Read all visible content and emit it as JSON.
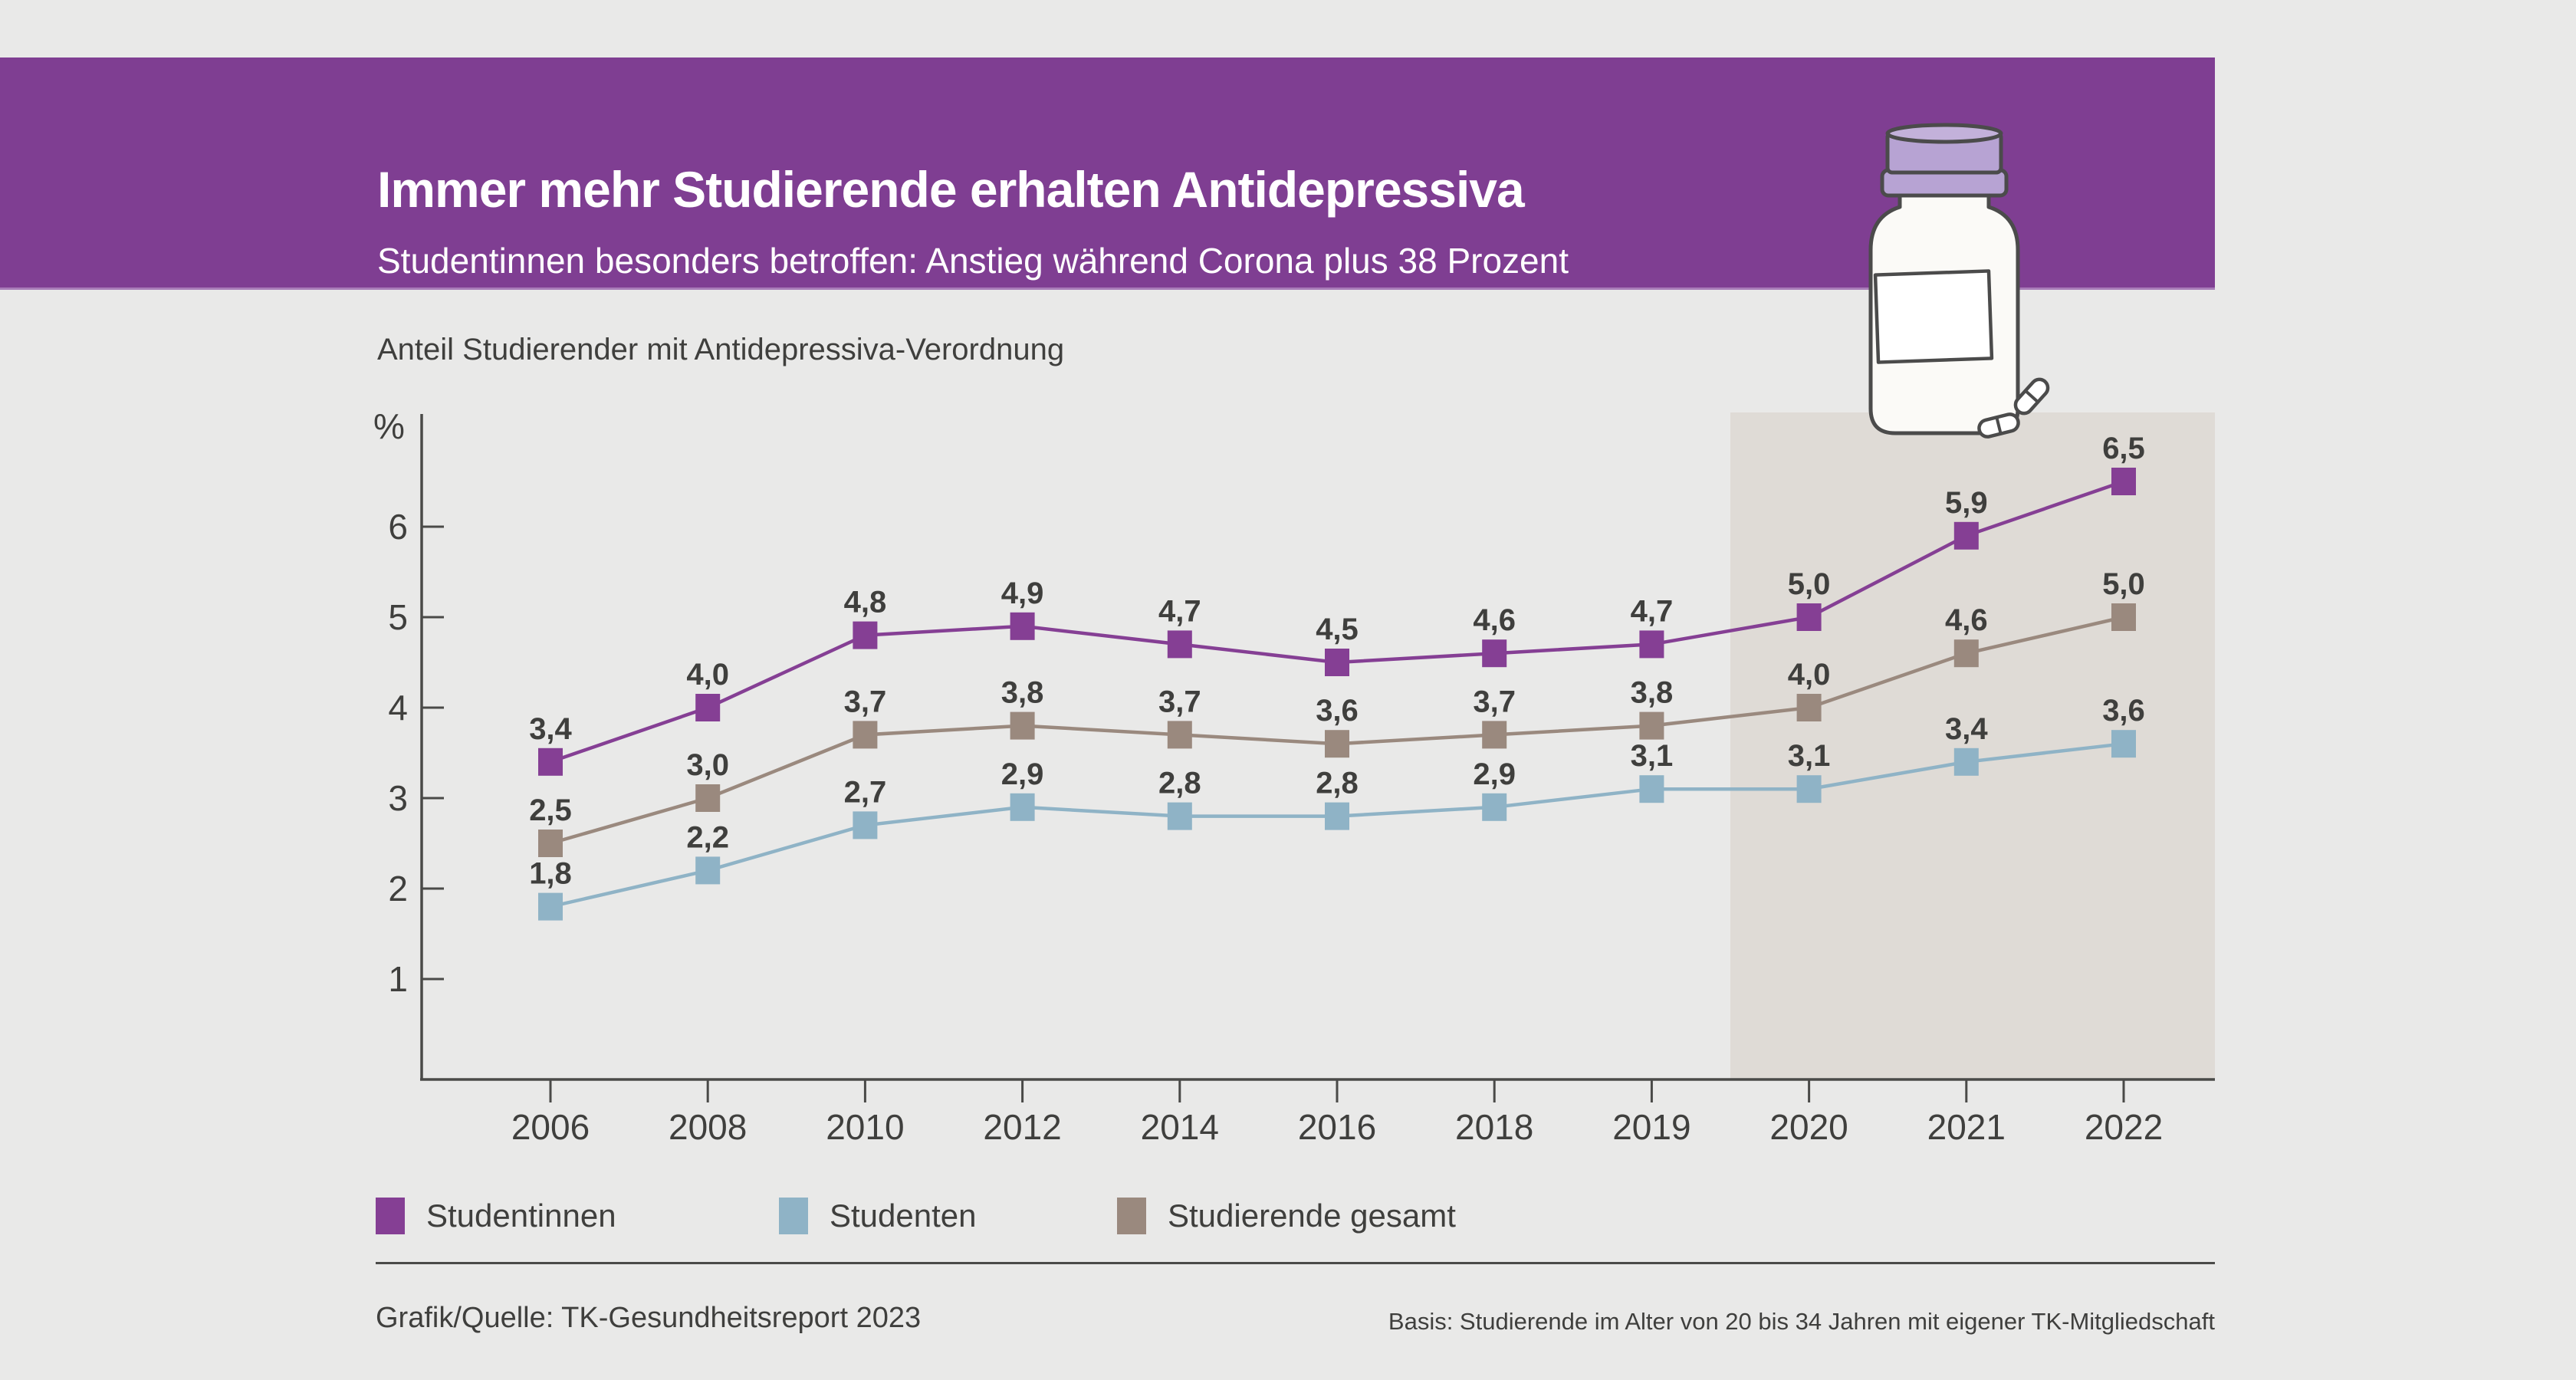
{
  "banner": {
    "title": "Immer mehr Studierende erhalten Antidepressiva",
    "subtitle": "Studentinnen besonders betroffen: Anstieg während Corona plus 38 Prozent",
    "bg_color": "#7f3e92",
    "text_color": "#ffffff"
  },
  "chart_heading": "Anteil Studierender mit Antidepressiva-Verordnung",
  "legend": [
    {
      "label": "Studentinnen",
      "color": "#853f94"
    },
    {
      "label": "Studenten",
      "color": "#8fb3c6"
    },
    {
      "label": "Studierende gesamt",
      "color": "#9a897e"
    }
  ],
  "footer": {
    "source": "Grafik/Quelle: TK-Gesundheitsreport 2023",
    "basis": "Basis: Studierende im Alter von 20 bis 34 Jahren mit eigener TK-Mitgliedschaft"
  },
  "chart_data": {
    "type": "line",
    "title": "Anteil Studierender mit Antidepressiva-Verordnung",
    "unit_label": "%",
    "categories": [
      "2006",
      "2008",
      "2010",
      "2012",
      "2014",
      "2016",
      "2018",
      "2019",
      "2020",
      "2021",
      "2022"
    ],
    "ylim": [
      0,
      7
    ],
    "yticks": [
      1,
      2,
      3,
      4,
      5,
      6
    ],
    "grid": false,
    "legend_position": "bottom",
    "marker": "square",
    "decimal_separator": ",",
    "series": [
      {
        "name": "Studentinnen",
        "color": "#853f94",
        "values": [
          3.4,
          4.0,
          4.8,
          4.9,
          4.7,
          4.5,
          4.6,
          4.7,
          5.0,
          5.9,
          6.5
        ]
      },
      {
        "name": "Studenten",
        "color": "#8fb3c6",
        "values": [
          1.8,
          2.2,
          2.7,
          2.9,
          2.8,
          2.8,
          2.9,
          3.1,
          3.1,
          3.4,
          3.6
        ]
      },
      {
        "name": "Studierende gesamt",
        "color": "#9a897e",
        "values": [
          2.5,
          3.0,
          3.7,
          3.8,
          3.7,
          3.6,
          3.7,
          3.8,
          4.0,
          4.6,
          5.0
        ]
      }
    ],
    "highlight_region": {
      "start_between": [
        "2019",
        "2020"
      ],
      "end": "right-edge",
      "color": "#dfdbd6",
      "meaning": "Corona period"
    },
    "axis_color": "#4a4a48",
    "label_color": "#3f3f3d"
  }
}
